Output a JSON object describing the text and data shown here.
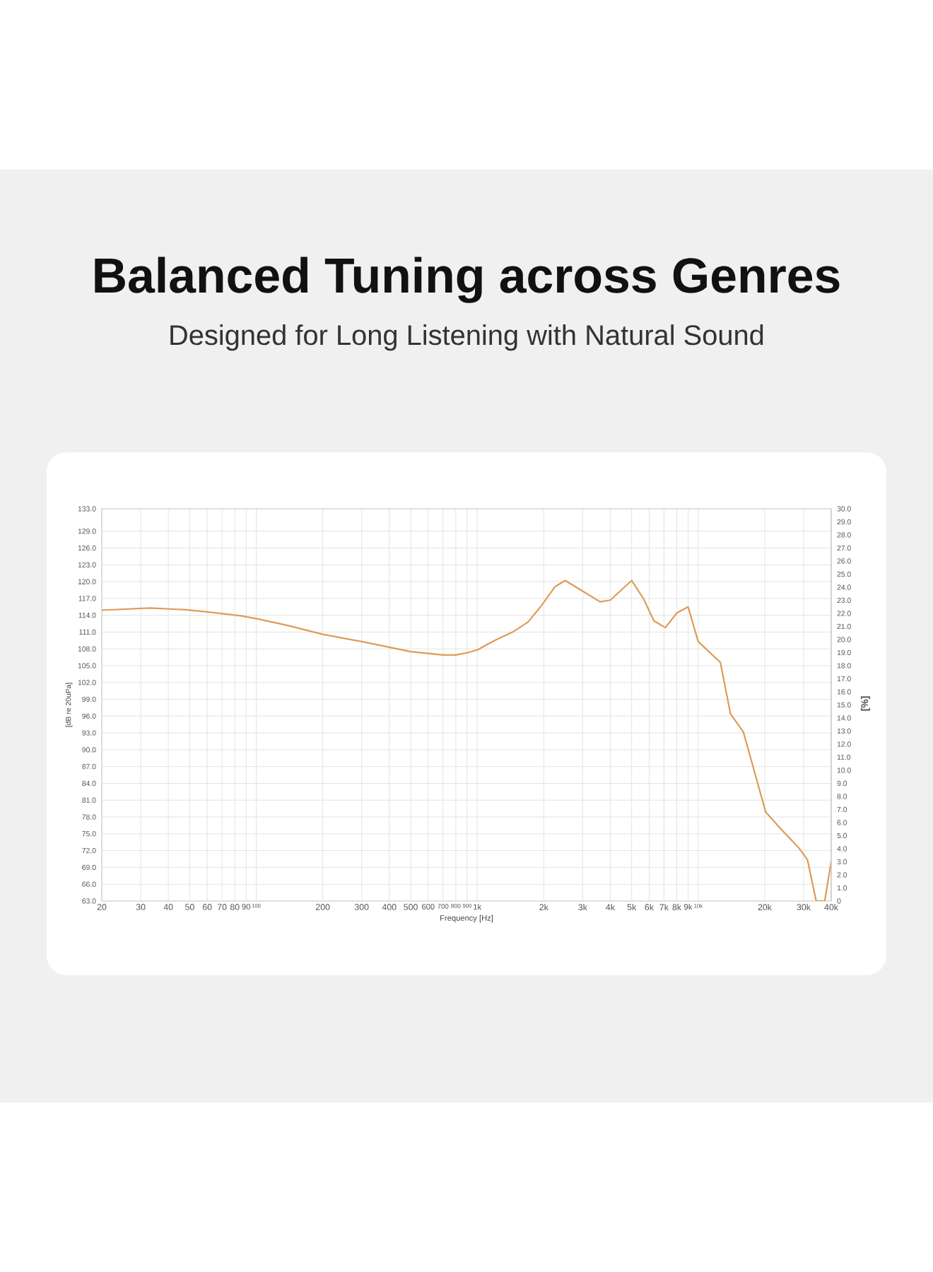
{
  "chart_data": {
    "type": "line",
    "title": "Balanced Tuning across Genres",
    "subtitle": "Designed for Long Listening with Natural Sound",
    "xlabel": "Frequency [Hz]",
    "ylabel": "[dB re 20uPa]",
    "y2label": "[%]",
    "x": [
      20,
      33,
      47,
      60,
      85,
      100,
      138,
      200,
      300,
      400,
      500,
      600,
      700,
      800,
      900,
      1000,
      1200,
      1460,
      1700,
      1960,
      2250,
      2500,
      3000,
      3600,
      4000,
      5000,
      5650,
      6300,
      7100,
      8000,
      9000,
      10000,
      12600,
      14000,
      16000,
      20200,
      23500,
      28500,
      31200,
      34200,
      37400,
      40000
    ],
    "values": [
      114.9,
      115.3,
      115.0,
      114.6,
      113.9,
      113.4,
      112.2,
      110.6,
      109.3,
      108.3,
      107.5,
      107.2,
      106.9,
      106.9,
      107.3,
      107.8,
      109.5,
      111.1,
      112.8,
      115.8,
      119.1,
      120.2,
      118.3,
      116.4,
      116.7,
      120.2,
      117.0,
      113.0,
      111.8,
      114.4,
      115.5,
      109.3,
      105.6,
      96.4,
      93.2,
      78.9,
      76.0,
      72.5,
      70.4,
      63.0,
      63.0,
      70.1
    ],
    "color": "#e09a58",
    "log": "x",
    "grid": true,
    "xlim": [
      20,
      40000
    ],
    "ylim": [
      63,
      133
    ],
    "y2lim": [
      0,
      30
    ],
    "xticks": [
      20,
      30,
      40,
      50,
      60,
      70,
      80,
      90,
      100,
      200,
      300,
      400,
      500,
      600,
      700,
      800,
      900,
      {
        "value": 1000,
        "label": "1k"
      },
      {
        "value": 2000,
        "label": "2k"
      },
      {
        "value": 3000,
        "label": "3k"
      },
      {
        "value": 4000,
        "label": "4k"
      },
      {
        "value": 5000,
        "label": "5k"
      },
      {
        "value": 6000,
        "label": "6k"
      },
      {
        "value": 7000,
        "label": "7k"
      },
      {
        "value": 8000,
        "label": "8k"
      },
      {
        "value": 9000,
        "label": "9k"
      },
      {
        "value": 10000,
        "label": "10k"
      },
      {
        "value": 20000,
        "label": "20k"
      },
      {
        "value": 30000,
        "label": "30k"
      },
      {
        "value": 40000,
        "label": "40k"
      }
    ],
    "yticks": [
      {
        "value": 63,
        "label": "63.0"
      },
      {
        "value": 66,
        "label": "66.0"
      },
      {
        "value": 69,
        "label": "69.0"
      },
      {
        "value": 72,
        "label": "72.0"
      },
      {
        "value": 75,
        "label": "75.0"
      },
      {
        "value": 78,
        "label": "78.0"
      },
      {
        "value": 81,
        "label": "81.0"
      },
      {
        "value": 84,
        "label": "84.0"
      },
      {
        "value": 87,
        "label": "87.0"
      },
      {
        "value": 90,
        "label": "90.0"
      },
      {
        "value": 93,
        "label": "93.0"
      },
      {
        "value": 96,
        "label": "96.0"
      },
      {
        "value": 99,
        "label": "99.0"
      },
      {
        "value": 102,
        "label": "102.0"
      },
      {
        "value": 105,
        "label": "105.0"
      },
      {
        "value": 108,
        "label": "108.0"
      },
      {
        "value": 111,
        "label": "111.0"
      },
      {
        "value": 114,
        "label": "114.0"
      },
      {
        "value": 117,
        "label": "117.0"
      },
      {
        "value": 120,
        "label": "120.0"
      },
      {
        "value": 123,
        "label": "123.0"
      },
      {
        "value": 126,
        "label": "126.0"
      },
      {
        "value": 129,
        "label": "129.0"
      },
      {
        "value": 133,
        "label": "133.0"
      }
    ],
    "y2ticks": [
      0,
      {
        "value": 1,
        "label": "1.0"
      },
      {
        "value": 2,
        "label": "2.0"
      },
      {
        "value": 3,
        "label": "3.0"
      },
      {
        "value": 4,
        "label": "4.0"
      },
      {
        "value": 5,
        "label": "5.0"
      },
      {
        "value": 6,
        "label": "6.0"
      },
      {
        "value": 7,
        "label": "7.0"
      },
      {
        "value": 8,
        "label": "8.0"
      },
      {
        "value": 9,
        "label": "9.0"
      },
      {
        "value": 10,
        "label": "10.0"
      },
      {
        "value": 11,
        "label": "11.0"
      },
      {
        "value": 12,
        "label": "12.0"
      },
      {
        "value": 13,
        "label": "13.0"
      },
      {
        "value": 14,
        "label": "14.0"
      },
      {
        "value": 15,
        "label": "15.0"
      },
      {
        "value": 16,
        "label": "16.0"
      },
      {
        "value": 17,
        "label": "17.0"
      },
      {
        "value": 18,
        "label": "18.0"
      },
      {
        "value": 19,
        "label": "19.0"
      },
      {
        "value": 20,
        "label": "20.0"
      },
      {
        "value": 21,
        "label": "21.0"
      },
      {
        "value": 22,
        "label": "22.0"
      },
      {
        "value": 23,
        "label": "23.0"
      },
      {
        "value": 24,
        "label": "24.0"
      },
      {
        "value": 25,
        "label": "25.0"
      },
      {
        "value": 26,
        "label": "26.0"
      },
      {
        "value": 27,
        "label": "27.0"
      },
      {
        "value": 28,
        "label": "28.0"
      },
      {
        "value": 29,
        "label": "29.0"
      },
      {
        "value": 30,
        "label": "30.0"
      }
    ]
  }
}
